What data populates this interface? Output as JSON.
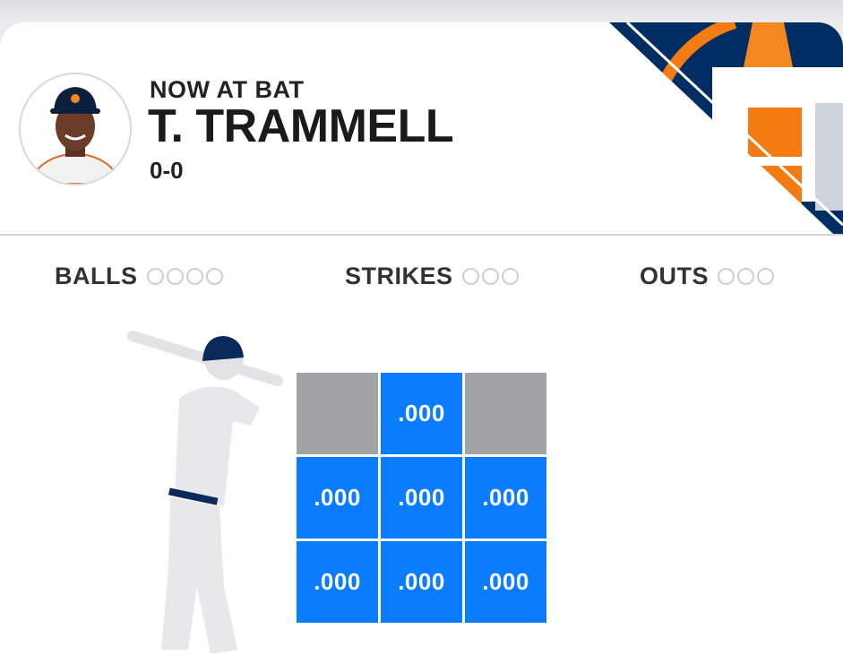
{
  "header": {
    "label": "NOW AT BAT",
    "player_name": "T. TRAMMELL",
    "record": "0-0",
    "team_logo": "houston-astros-logo"
  },
  "count": {
    "balls": {
      "label": "BALLS",
      "total": 4,
      "filled": 0
    },
    "strikes": {
      "label": "STRIKES",
      "total": 3,
      "filled": 0
    },
    "outs": {
      "label": "OUTS",
      "total": 3,
      "filled": 0
    }
  },
  "strike_zone": {
    "cells": [
      {
        "value": "",
        "color": "#a3a3a5"
      },
      {
        "value": ".000",
        "color": "#0a7cff"
      },
      {
        "value": "",
        "color": "#a3a3a5"
      },
      {
        "value": ".000",
        "color": "#0a7cff"
      },
      {
        "value": ".000",
        "color": "#0a7cff"
      },
      {
        "value": ".000",
        "color": "#0a7cff"
      },
      {
        "value": ".000",
        "color": "#0a7cff"
      },
      {
        "value": ".000",
        "color": "#0a7cff"
      },
      {
        "value": ".000",
        "color": "#0a7cff"
      }
    ]
  },
  "colors": {
    "navy": "#002d62",
    "orange": "#f4871e",
    "zone_blue": "#0a7cff",
    "zone_gray": "#a3a3a5"
  }
}
